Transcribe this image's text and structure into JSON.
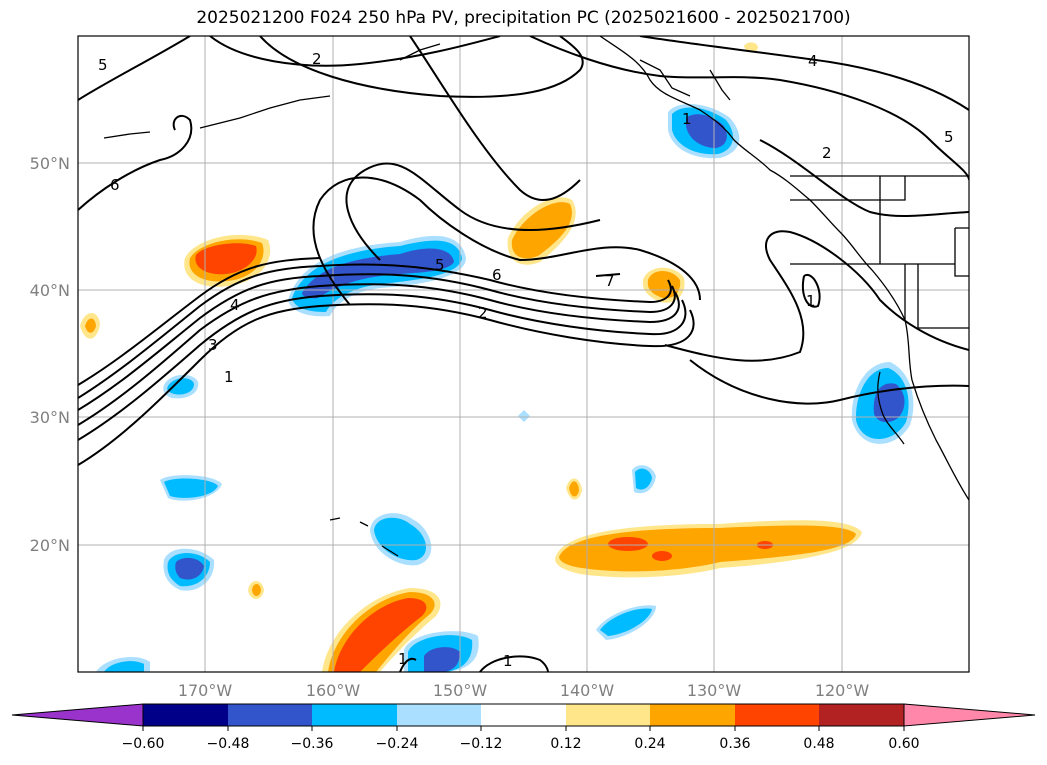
{
  "title": "2025021200 F024 250 hPa PV, precipitation PC (2025021600 - 2025021700)",
  "lat_labels": [
    "50°N",
    "40°N",
    "30°N",
    "20°N"
  ],
  "lon_labels": [
    "170°W",
    "160°W",
    "150°W",
    "140°W",
    "130°W",
    "120°W"
  ],
  "pv_contour_labels": [
    "5",
    "2",
    "4",
    "2",
    "5",
    "6",
    "4",
    "3",
    "1",
    "5",
    "6",
    "2",
    "7",
    "1",
    "1",
    "1",
    "1"
  ],
  "colorbar": {
    "ticks": [
      "−0.60",
      "−0.48",
      "−0.36",
      "−0.24",
      "−0.12",
      "0.12",
      "0.24",
      "0.36",
      "0.48",
      "0.60"
    ],
    "colors": [
      "#9933cc",
      "#000088",
      "#3355cc",
      "#00bbff",
      "#aadfff",
      "#ffffff",
      "#ffe68a",
      "#ffa500",
      "#ff4400",
      "#b22222",
      "#ff88aa"
    ]
  },
  "colors": {
    "neg_strong": "#3355cc",
    "neg_mid": "#00bbff",
    "neg_light": "#aadfff",
    "pos_light": "#ffe68a",
    "pos_mid": "#ffa500",
    "pos_strong": "#ff4400"
  }
}
